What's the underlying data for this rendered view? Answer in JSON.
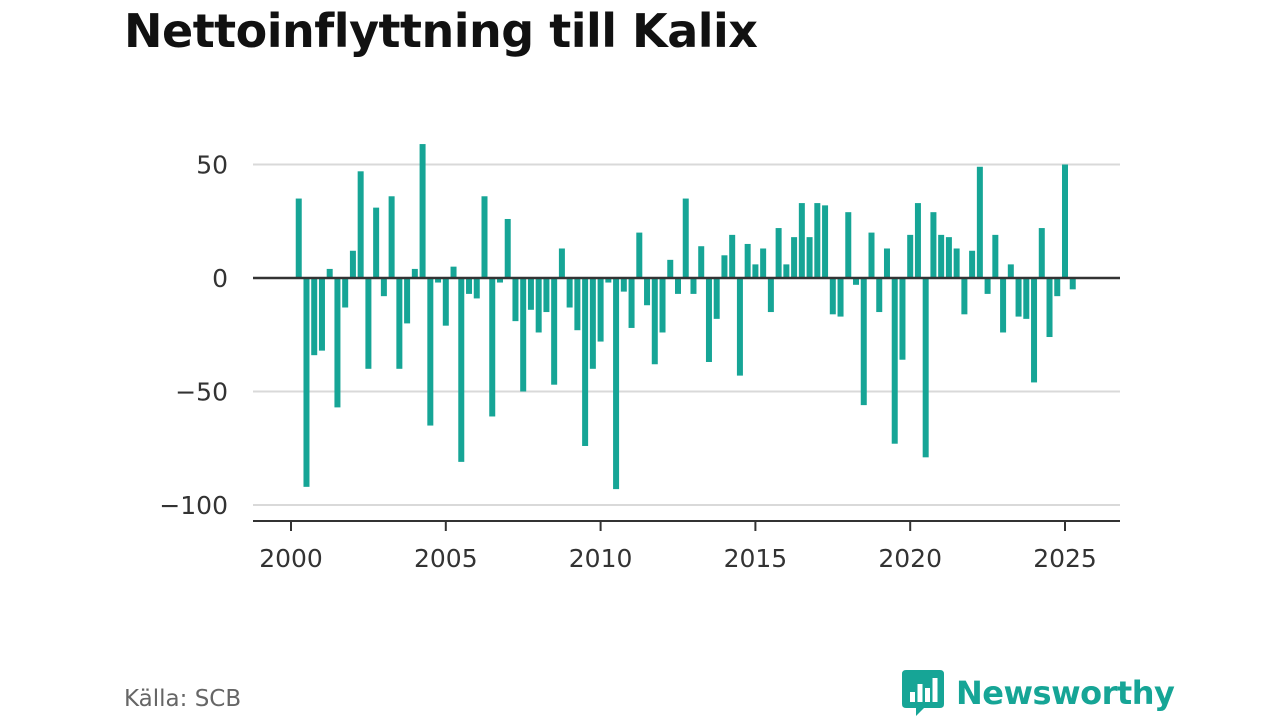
{
  "title": "Nettoinflyttning till Kalix",
  "source": "Källa: SCB",
  "brand": {
    "name": "Newsworthy",
    "icon": "bar-chart-speech-bubble-icon",
    "color": "#16a596"
  },
  "colors": {
    "bar": "#16a596",
    "grid": "#d9d9d9",
    "axis": "#333333",
    "text": "#333333"
  },
  "chart_data": {
    "type": "bar",
    "title": "Nettoinflyttning till Kalix",
    "xlabel": "",
    "ylabel": "",
    "ylim": [
      -105,
      60
    ],
    "xlim": [
      2000.0,
      2026.0
    ],
    "yticks": [
      50,
      0,
      -50,
      -100
    ],
    "ytick_labels": [
      "50",
      "0",
      "−50",
      "−100"
    ],
    "xticks": [
      2000,
      2005,
      2010,
      2015,
      2020,
      2025
    ],
    "xtick_labels": [
      "2000",
      "2005",
      "2010",
      "2015",
      "2020",
      "2025"
    ],
    "grid": true,
    "series": [
      {
        "x": [
          2000.25,
          2000.5,
          2000.75,
          2001.0,
          2001.25,
          2001.5,
          2001.75,
          2002.0,
          2002.25,
          2002.5,
          2002.75,
          2003.0,
          2003.25,
          2003.5,
          2003.75,
          2004.0,
          2004.25,
          2004.5,
          2004.75,
          2005.0,
          2005.25,
          2005.5,
          2005.75,
          2006.0,
          2006.25,
          2006.5,
          2006.75,
          2007.0,
          2007.25,
          2007.5,
          2007.75,
          2008.0,
          2008.25,
          2008.5,
          2008.75,
          2009.0,
          2009.25,
          2009.5,
          2009.75,
          2010.0,
          2010.25,
          2010.5,
          2010.75,
          2011.0,
          2011.25,
          2011.5,
          2011.75,
          2012.0,
          2012.25,
          2012.5,
          2012.75,
          2013.0,
          2013.25,
          2013.5,
          2013.75,
          2014.0,
          2014.25,
          2014.5,
          2014.75,
          2015.0,
          2015.25,
          2015.5,
          2015.75,
          2016.0,
          2016.25,
          2016.5,
          2016.75,
          2017.0,
          2017.25,
          2017.5,
          2017.75,
          2018.0,
          2018.25,
          2018.5,
          2018.75,
          2019.0,
          2019.25,
          2019.5,
          2019.75,
          2020.0,
          2020.25,
          2020.5,
          2020.75,
          2021.0,
          2021.25,
          2021.5,
          2021.75,
          2022.0,
          2022.25,
          2022.5,
          2022.75,
          2023.0,
          2023.25,
          2023.5,
          2023.75,
          2024.0,
          2024.25,
          2024.5,
          2024.75,
          2025.0,
          2025.25
        ],
        "values": [
          35,
          -92,
          -34,
          -32,
          4,
          -57,
          -13,
          12,
          47,
          -40,
          31,
          -8,
          36,
          -40,
          -20,
          4,
          59,
          -65,
          -2,
          -21,
          5,
          -81,
          -7,
          -9,
          36,
          -61,
          -2,
          26,
          -19,
          -50,
          -14,
          -24,
          -15,
          -47,
          13,
          -13,
          -23,
          -74,
          -40,
          -28,
          -2,
          -93,
          -6,
          -22,
          20,
          -12,
          -38,
          -24,
          8,
          -7,
          35,
          -7,
          14,
          -37,
          -18,
          10,
          19,
          -43,
          15,
          6,
          13,
          -15,
          22,
          6,
          18,
          33,
          18,
          33,
          32,
          -16,
          -17,
          29,
          -3,
          -56,
          20,
          -15,
          13,
          -73,
          -36,
          19,
          33,
          -79,
          29,
          19,
          18,
          13,
          -16,
          12,
          49,
          -7,
          19,
          -24,
          6,
          -17,
          -18,
          -46,
          22,
          -26,
          -8,
          50,
          -5
        ]
      }
    ]
  }
}
